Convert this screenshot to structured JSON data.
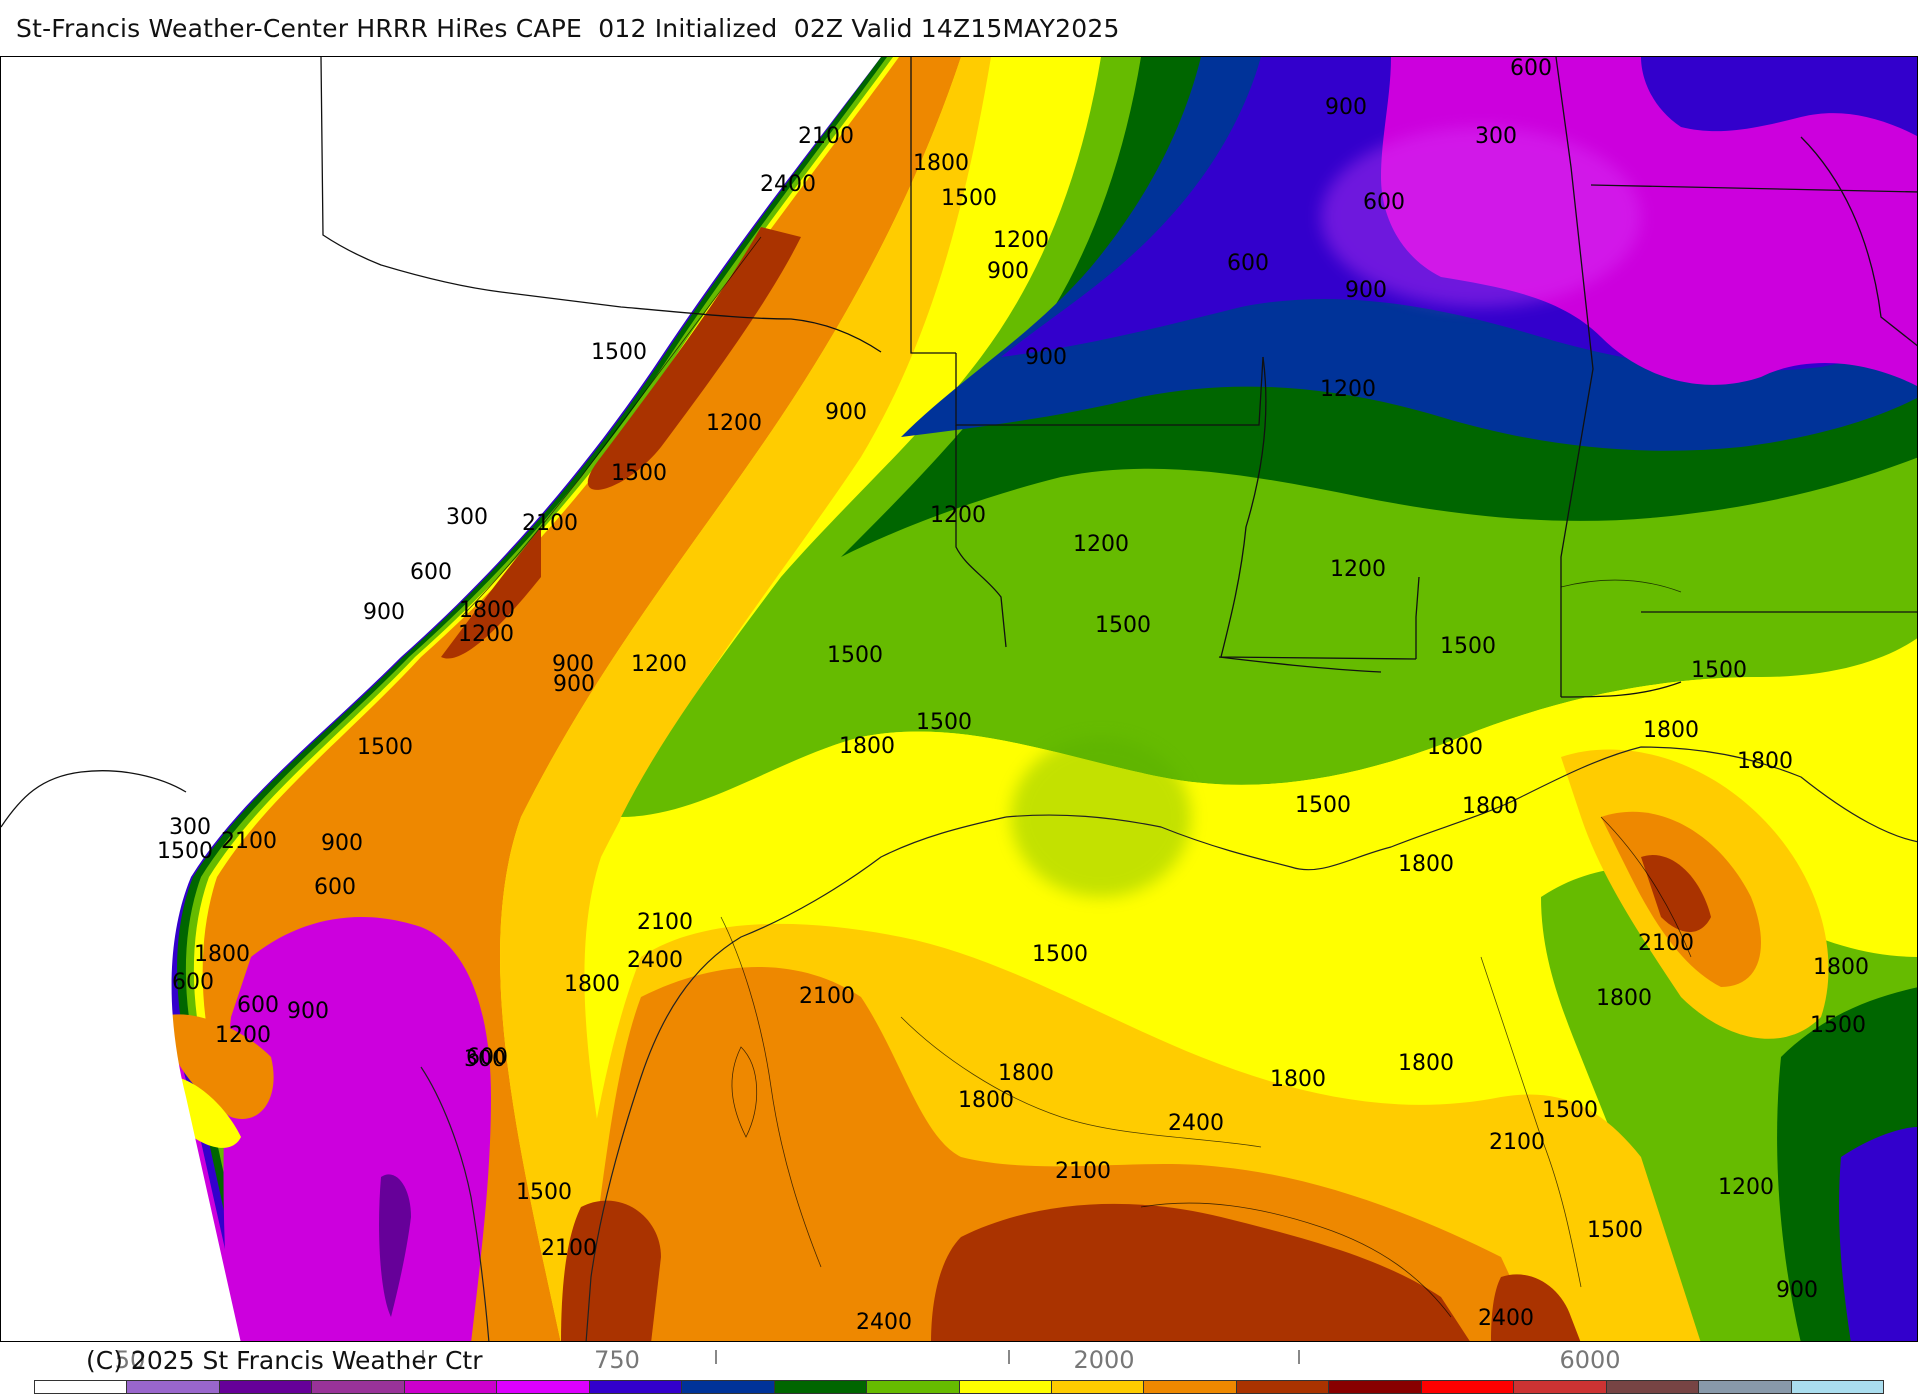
{
  "title": "St-Francis Weather-Center HRRR HiRes CAPE  012 Initialized  02Z Valid 14Z15MAY2025",
  "copyright": "(C) 2025 St Francis Weather Ctr",
  "map": {
    "variable": "CAPE",
    "contour_labels": [
      "600",
      "900",
      "300",
      "2100",
      "1800",
      "1500",
      "2400",
      "600",
      "1200",
      "900",
      "900",
      "600",
      "900",
      "1500",
      "1200",
      "900",
      "1200",
      "1500",
      "300",
      "2100",
      "600",
      "1800",
      "900",
      "1200",
      "900",
      "1200",
      "1200",
      "1200",
      "1500",
      "1500",
      "1500",
      "1500",
      "1800",
      "1200",
      "1500",
      "600",
      "900",
      "300",
      "1500",
      "2100",
      "900",
      "600",
      "1800",
      "600",
      "1200",
      "900",
      "300",
      "1800",
      "2100",
      "2400",
      "2100",
      "600",
      "1500",
      "1800",
      "1500",
      "1800",
      "1800",
      "1800",
      "2100",
      "2400",
      "2100",
      "1500",
      "1800",
      "1800",
      "1800",
      "1500",
      "1800",
      "1800",
      "1500",
      "1800",
      "2100",
      "1800",
      "1500",
      "1200",
      "1500",
      "2100",
      "900",
      "2400",
      "2400"
    ]
  },
  "legend": {
    "tick_labels": [
      "50",
      "750",
      "2000",
      "6000"
    ],
    "colors": [
      "#ffffff",
      "#9966cc",
      "#660099",
      "#993399",
      "#cc00cc",
      "#dd00ff",
      "#3300cc",
      "#003399",
      "#006600",
      "#66bb00",
      "#ffff00",
      "#ffcc00",
      "#ee8800",
      "#aa3300",
      "#880000",
      "#ff0000",
      "#cc3333",
      "#774444",
      "#8899aa",
      "#aaddee"
    ]
  }
}
